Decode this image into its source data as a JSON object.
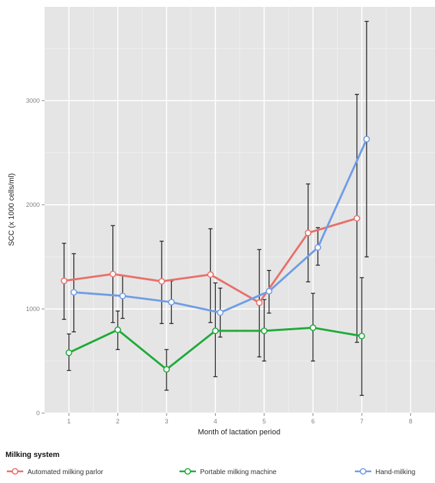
{
  "chart_data": {
    "type": "line",
    "xlabel": "Month of lactation period",
    "ylabel": "SCC (x 1000 cells/ml)",
    "x_ticks": [
      "1",
      "2",
      "3",
      "4",
      "5",
      "6",
      "7",
      "8"
    ],
    "y_ticks": [
      "0",
      "1000",
      "2000",
      "3000"
    ],
    "xlim": [
      0.5,
      8.5
    ],
    "ylim": [
      0,
      3900
    ],
    "grid": true,
    "error_bars": true,
    "legend_title": "Milking system",
    "legend_position": "bottom",
    "series": [
      {
        "name": "Automated milking parlor",
        "color": "#e8706b",
        "x": [
          1,
          2,
          3,
          4,
          5,
          6,
          7
        ],
        "y": [
          1270,
          1335,
          1265,
          1330,
          1060,
          1730,
          1870
        ],
        "err_low": [
          900,
          870,
          860,
          870,
          540,
          1260,
          680
        ],
        "err_high": [
          1630,
          1800,
          1650,
          1770,
          1570,
          2200,
          3060
        ]
      },
      {
        "name": "Portable milking machine",
        "color": "#1faa3a",
        "x": [
          1,
          2,
          3,
          4,
          5,
          6,
          7
        ],
        "y": [
          580,
          800,
          420,
          790,
          790,
          820,
          740
        ],
        "err_low": [
          410,
          610,
          220,
          350,
          500,
          500,
          170
        ],
        "err_high": [
          760,
          980,
          610,
          1250,
          1090,
          1150,
          1300
        ]
      },
      {
        "name": "Hand-milking",
        "color": "#6f9de6",
        "x": [
          1,
          2,
          3,
          4,
          5,
          6,
          7
        ],
        "y": [
          1160,
          1125,
          1065,
          965,
          1170,
          1590,
          2630
        ],
        "err_low": [
          780,
          910,
          860,
          730,
          960,
          1420,
          1500
        ],
        "err_high": [
          1530,
          1320,
          1270,
          1200,
          1370,
          1780,
          3760
        ]
      }
    ]
  }
}
